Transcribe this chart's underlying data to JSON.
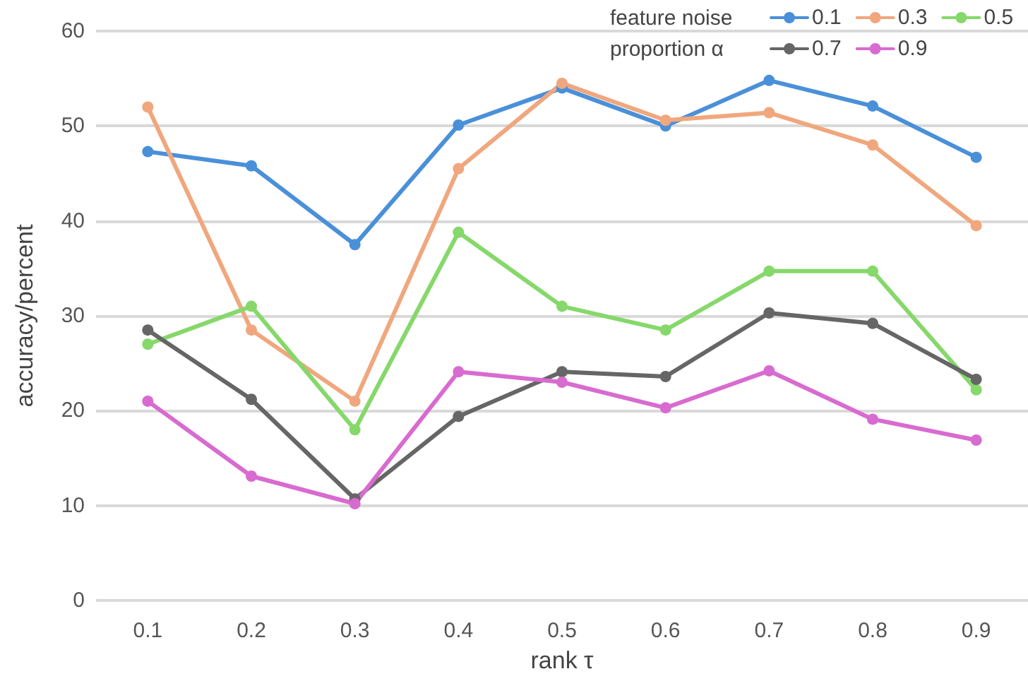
{
  "chart_data": {
    "type": "line",
    "xlabel": "rank τ",
    "ylabel": "accuracy/percent",
    "legend_title": "feature noise proportion α",
    "categories": [
      "0.1",
      "0.2",
      "0.3",
      "0.4",
      "0.5",
      "0.6",
      "0.7",
      "0.8",
      "0.9"
    ],
    "series": [
      {
        "name": "0.1",
        "color": "#4a90d9",
        "values": [
          47.3,
          45.8,
          37.5,
          50.1,
          54,
          50,
          54.8,
          52.1,
          46.7
        ]
      },
      {
        "name": "0.3",
        "color": "#f0a77d",
        "values": [
          52,
          28.5,
          21,
          45.5,
          54.5,
          50.6,
          51.4,
          48,
          39.5
        ]
      },
      {
        "name": "0.5",
        "color": "#86d86a",
        "values": [
          27,
          31,
          18,
          38.8,
          31,
          28.5,
          34.7,
          34.7,
          22.2
        ]
      },
      {
        "name": "0.7",
        "color": "#666666",
        "values": [
          28.5,
          21.2,
          10.7,
          19.4,
          24.1,
          23.6,
          30.3,
          29.2,
          23.3
        ]
      },
      {
        "name": "0.9",
        "color": "#d86bd0",
        "values": [
          21,
          13.1,
          10.2,
          24.1,
          23,
          20.3,
          24.2,
          19.1,
          16.9
        ]
      }
    ],
    "ylim": [
      0,
      60
    ],
    "yticks": [
      0,
      10,
      20,
      30,
      40,
      50,
      60
    ],
    "grid": "y",
    "legend": "top right",
    "marker": "circle",
    "line_style": "solid"
  }
}
